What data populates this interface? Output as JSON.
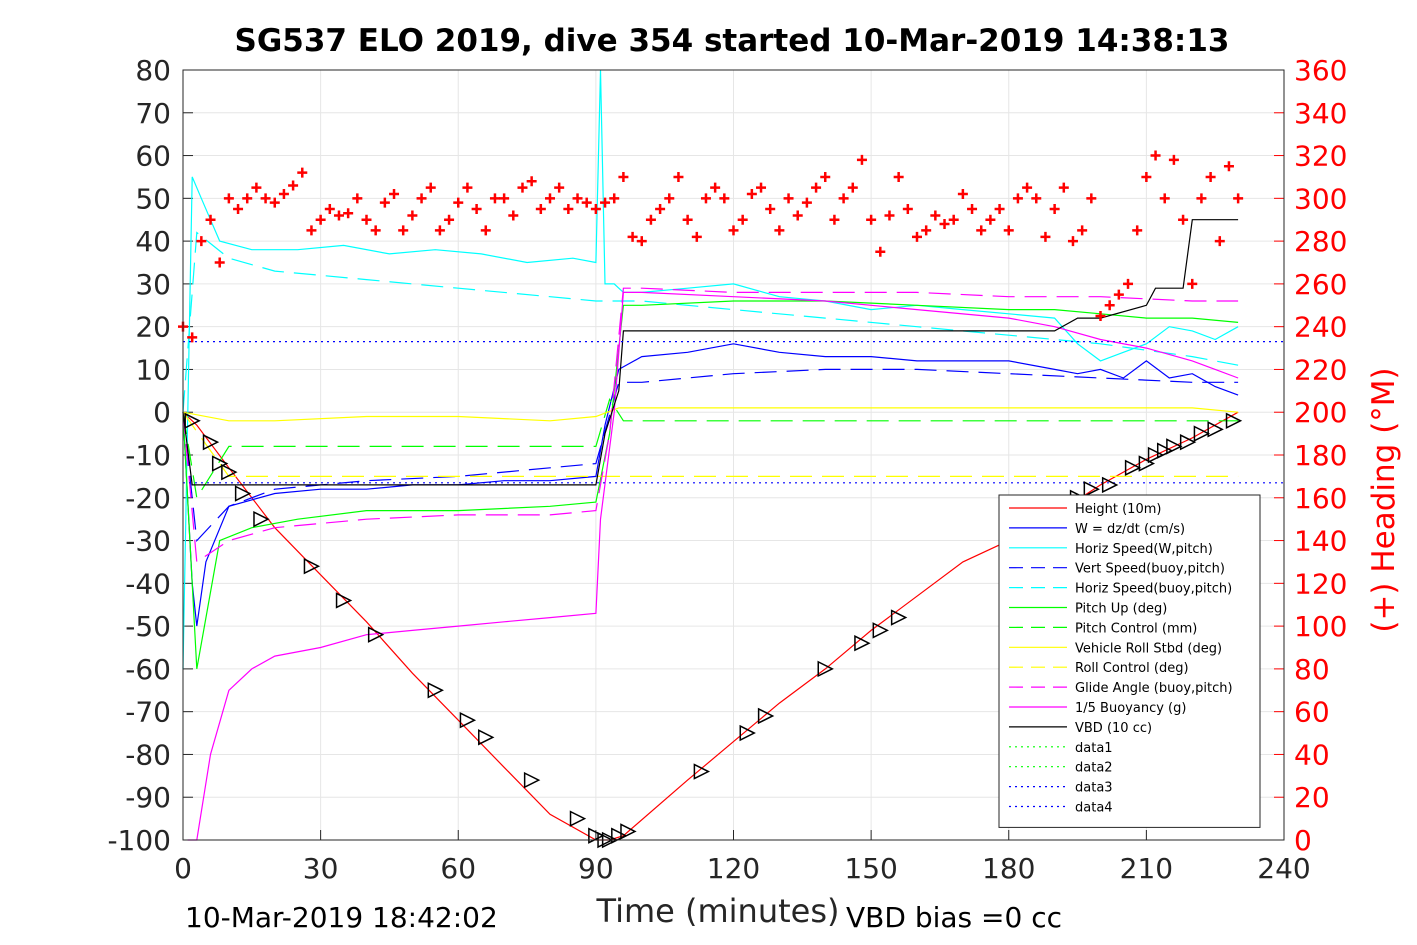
{
  "chart_data": {
    "type": "line",
    "title": "SG537 ELO 2019, dive 354 started 10-Mar-2019 14:38:13",
    "xlabel": "Time (minutes)",
    "ylabel_right": "(+) Heading (°M)",
    "xlim": [
      0,
      240
    ],
    "ylim_left": [
      -100,
      80
    ],
    "ylim_right": [
      0,
      360
    ],
    "x_ticks": [
      "0",
      "30",
      "60",
      "90",
      "120",
      "150",
      "180",
      "210",
      "240"
    ],
    "y_ticks_left": [
      "80",
      "70",
      "60",
      "50",
      "40",
      "30",
      "20",
      "10",
      "0",
      "-10",
      "-20",
      "-30",
      "-40",
      "-50",
      "-60",
      "-70",
      "-80",
      "-90",
      "-100"
    ],
    "y_ticks_right": [
      "360",
      "340",
      "320",
      "300",
      "280",
      "260",
      "240",
      "220",
      "200",
      "180",
      "160",
      "140",
      "120",
      "100",
      "80",
      "60",
      "40",
      "20",
      "0"
    ],
    "grid": true,
    "legend_position": "bottom-right",
    "footer_left": "10-Mar-2019 18:42:02",
    "footer_right": "VBD bias =0 cc",
    "series": [
      {
        "name": "Height (10m)",
        "color": "#ff0000",
        "style": "solid",
        "x": [
          0,
          3,
          10,
          20,
          30,
          40,
          50,
          60,
          70,
          80,
          90,
          93,
          96,
          110,
          120,
          130,
          140,
          150,
          160,
          170,
          180,
          190,
          200,
          210,
          220,
          230
        ],
        "y": [
          0,
          -3,
          -13,
          -27,
          -38,
          -49,
          -61,
          -72,
          -83,
          -94,
          -100,
          -100,
          -99,
          -86,
          -77,
          -68,
          -60,
          -51,
          -43,
          -35,
          -30,
          -24,
          -17,
          -11,
          -6,
          0
        ]
      },
      {
        "name": "W = dz/dt (cm/s)",
        "color": "#0000ff",
        "style": "solid",
        "x": [
          0,
          2,
          3,
          5,
          10,
          20,
          30,
          40,
          50,
          60,
          70,
          80,
          90,
          92,
          95,
          100,
          110,
          120,
          130,
          140,
          150,
          160,
          170,
          180,
          190,
          195,
          200,
          205,
          210,
          215,
          220,
          225,
          230
        ],
        "y": [
          0,
          -40,
          -50,
          -35,
          -22,
          -19,
          -18,
          -18,
          -17,
          -17,
          -16,
          -16,
          -15,
          -3,
          10,
          13,
          14,
          16,
          14,
          13,
          13,
          12,
          12,
          12,
          10,
          9,
          10,
          8,
          12,
          8,
          9,
          6,
          4
        ]
      },
      {
        "name": "Horiz Speed(W,pitch)",
        "color": "#00ffff",
        "style": "solid",
        "x": [
          0,
          2,
          4,
          8,
          15,
          25,
          35,
          45,
          55,
          65,
          75,
          85,
          90,
          91,
          92,
          94,
          96,
          100,
          110,
          120,
          130,
          140,
          150,
          160,
          170,
          180,
          190,
          195,
          200,
          205,
          210,
          215,
          220,
          225,
          230
        ],
        "y": [
          -60,
          55,
          50,
          40,
          38,
          38,
          39,
          37,
          38,
          37,
          35,
          36,
          35,
          80,
          30,
          30,
          28,
          28,
          29,
          30,
          27,
          26,
          24,
          25,
          24,
          23,
          22,
          16,
          12,
          14,
          16,
          20,
          19,
          17,
          20
        ]
      },
      {
        "name": "Vert Speed(buoy,pitch)",
        "color": "#0000ff",
        "style": "dashed",
        "x": [
          0,
          3,
          10,
          20,
          40,
          60,
          80,
          90,
          95,
          100,
          120,
          140,
          160,
          180,
          200,
          220,
          230
        ],
        "y": [
          0,
          -30,
          -22,
          -18,
          -16,
          -15,
          -13,
          -12,
          7,
          7,
          9,
          10,
          10,
          9,
          8,
          7,
          7
        ]
      },
      {
        "name": "Horiz Speed(buoy,pitch)",
        "color": "#00ffff",
        "style": "dashed",
        "x": [
          0,
          3,
          10,
          20,
          40,
          60,
          80,
          90,
          95,
          100,
          120,
          140,
          160,
          180,
          200,
          220,
          230
        ],
        "y": [
          0,
          42,
          36,
          33,
          31,
          29,
          27,
          26,
          26,
          26,
          24,
          22,
          20,
          18,
          16,
          13,
          11
        ]
      },
      {
        "name": "Pitch Up (deg)",
        "color": "#00ff00",
        "style": "solid",
        "x": [
          0,
          3,
          8,
          15,
          25,
          40,
          60,
          80,
          90,
          93,
          96,
          100,
          120,
          140,
          160,
          180,
          190,
          200,
          210,
          220,
          230
        ],
        "y": [
          0,
          -60,
          -30,
          -27,
          -25,
          -23,
          -23,
          -22,
          -21,
          -5,
          25,
          25,
          26,
          26,
          25,
          24,
          24,
          23,
          22,
          22,
          21
        ]
      },
      {
        "name": "Pitch Control (mm)",
        "color": "#00ff00",
        "style": "dashed",
        "x": [
          0,
          3,
          10,
          90,
          93,
          96,
          230
        ],
        "y": [
          0,
          -20,
          -8,
          -8,
          3,
          -2,
          -2
        ]
      },
      {
        "name": "Vehicle Roll Stbd (deg)",
        "color": "#ffff00",
        "style": "solid",
        "x": [
          0,
          10,
          20,
          40,
          60,
          80,
          90,
          95,
          100,
          120,
          140,
          160,
          180,
          200,
          220,
          230
        ],
        "y": [
          0,
          -2,
          -2,
          -1,
          -1,
          -2,
          -1,
          1,
          1,
          1,
          1,
          1,
          1,
          1,
          1,
          0
        ]
      },
      {
        "name": "Roll Control (deg)",
        "color": "#ffff00",
        "style": "dashed",
        "x": [
          0,
          10,
          90,
          95,
          230
        ],
        "y": [
          0,
          -15,
          -15,
          -15,
          -15
        ]
      },
      {
        "name": "Glide Angle (buoy,pitch)",
        "color": "#ff00ff",
        "style": "dashed",
        "x": [
          0,
          3,
          10,
          20,
          40,
          60,
          80,
          90,
          93,
          96,
          100,
          120,
          140,
          160,
          180,
          200,
          220,
          230
        ],
        "y": [
          0,
          -35,
          -30,
          -27,
          -25,
          -24,
          -24,
          -23,
          -5,
          29,
          29,
          28,
          28,
          28,
          27,
          27,
          26,
          26
        ]
      },
      {
        "name": "1/5 Buoyancy (g)",
        "color": "#ff00ff",
        "style": "solid",
        "x": [
          1,
          3,
          6,
          10,
          15,
          20,
          30,
          40,
          50,
          60,
          70,
          80,
          90,
          91,
          94,
          96,
          100,
          120,
          140,
          160,
          180,
          190,
          200,
          210,
          220,
          225,
          230
        ],
        "y": [
          -100,
          -100,
          -80,
          -65,
          -60,
          -57,
          -55,
          -52,
          -51,
          -50,
          -49,
          -48,
          -47,
          -25,
          0,
          28,
          28,
          27,
          26,
          24,
          22,
          20,
          17,
          15,
          12,
          10,
          8
        ]
      },
      {
        "name": "VBD (10 cc)",
        "color": "#000000",
        "style": "solid",
        "x": [
          0,
          2,
          90,
          92,
          95,
          96,
          100,
          140,
          160,
          180,
          190,
          195,
          200,
          210,
          212,
          218,
          220,
          230
        ],
        "y": [
          0,
          -17,
          -17,
          -5,
          5,
          19,
          19,
          19,
          19,
          19,
          19,
          22,
          22,
          25,
          29,
          29,
          45,
          45
        ]
      },
      {
        "name": "data1",
        "color": "#00ff00",
        "style": "dotted",
        "x": [],
        "y": []
      },
      {
        "name": "data2",
        "color": "#00ff00",
        "style": "dotted",
        "x": [],
        "y": []
      },
      {
        "name": "data3",
        "color": "#0000ff",
        "style": "dotted",
        "x": [
          0,
          240
        ],
        "y": [
          16.5,
          16.5
        ]
      },
      {
        "name": "data4",
        "color": "#0000ff",
        "style": "dotted",
        "x": [
          0,
          240
        ],
        "y": [
          -16.5,
          -16.5
        ]
      }
    ],
    "heading_series": {
      "color": "#ff0000",
      "marker": "+",
      "axis": "right",
      "x": [
        0,
        2,
        4,
        6,
        8,
        10,
        12,
        14,
        16,
        18,
        20,
        22,
        24,
        26,
        28,
        30,
        32,
        34,
        36,
        38,
        40,
        42,
        44,
        46,
        48,
        50,
        52,
        54,
        56,
        58,
        60,
        62,
        64,
        66,
        68,
        70,
        72,
        74,
        76,
        78,
        80,
        82,
        84,
        86,
        88,
        90,
        92,
        94,
        96,
        98,
        100,
        102,
        104,
        106,
        108,
        110,
        112,
        114,
        116,
        118,
        120,
        122,
        124,
        126,
        128,
        130,
        132,
        134,
        136,
        138,
        140,
        142,
        144,
        146,
        148,
        150,
        152,
        154,
        156,
        158,
        160,
        162,
        164,
        166,
        168,
        170,
        172,
        174,
        176,
        178,
        180,
        182,
        184,
        186,
        188,
        190,
        192,
        194,
        196,
        198,
        200,
        202,
        204,
        206,
        208,
        210,
        212,
        214,
        216,
        218,
        220,
        222,
        224,
        226,
        228,
        230
      ],
      "y": [
        240,
        235,
        280,
        290,
        270,
        300,
        295,
        300,
        305,
        300,
        298,
        302,
        306,
        312,
        285,
        290,
        295,
        292,
        293,
        300,
        290,
        285,
        298,
        302,
        285,
        292,
        300,
        305,
        285,
        290,
        298,
        305,
        295,
        285,
        300,
        300,
        292,
        305,
        308,
        295,
        300,
        305,
        295,
        300,
        298,
        295,
        298,
        300,
        310,
        282,
        280,
        290,
        295,
        300,
        310,
        290,
        282,
        300,
        305,
        300,
        285,
        290,
        302,
        305,
        295,
        285,
        300,
        292,
        298,
        305,
        310,
        290,
        300,
        305,
        318,
        290,
        275,
        292,
        310,
        295,
        282,
        285,
        292,
        288,
        290,
        302,
        295,
        285,
        290,
        295,
        285,
        300,
        305,
        300,
        282,
        295,
        305,
        280,
        285,
        300,
        245,
        250,
        255,
        260,
        285,
        310,
        320,
        300,
        318,
        290,
        260,
        300,
        310,
        280,
        315,
        300
      ]
    },
    "markers": {
      "color": "#000000",
      "x": [
        2,
        6,
        8,
        10,
        13,
        17,
        28,
        35,
        42,
        55,
        62,
        66,
        76,
        86,
        90,
        92,
        93,
        95,
        97,
        113,
        123,
        127,
        140,
        148,
        152,
        156,
        180,
        195,
        198,
        202,
        207,
        210,
        212,
        214,
        216,
        219,
        222,
        225,
        229
      ],
      "y": [
        -2,
        -7,
        -12,
        -14,
        -19,
        -25,
        -36,
        -44,
        -52,
        -65,
        -72,
        -76,
        -86,
        -95,
        -99,
        -100,
        -100,
        -99,
        -98,
        -84,
        -75,
        -71,
        -60,
        -54,
        -51,
        -48,
        -30,
        -20,
        -18,
        -17,
        -13,
        -12,
        -10,
        -9,
        -8,
        -7,
        -5,
        -4,
        -2
      ]
    }
  }
}
